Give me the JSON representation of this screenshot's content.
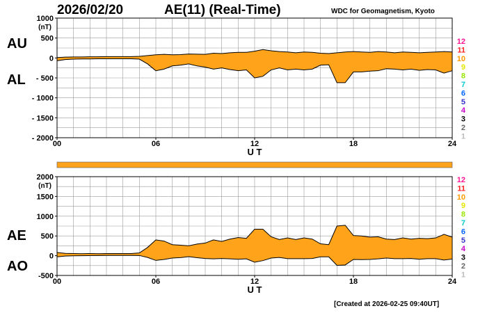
{
  "header": {
    "date": "2026/02/20",
    "title": "AE(11) (Real-Time)",
    "source": "WDC for Geomagnetism, Kyoto"
  },
  "footer": {
    "created": "[Created at 2026-02-25 09:40UT]"
  },
  "colors": {
    "fill": "#ffa31a",
    "line": "#000000",
    "grid": "#9a9a9a",
    "bar": "#ffa31a"
  },
  "legend": {
    "labels": [
      "12",
      "11",
      "10",
      "9",
      "8",
      "7",
      "6",
      "5",
      "4",
      "3",
      "2",
      "1"
    ],
    "colors": [
      "#ff1493",
      "#ff2020",
      "#ff9900",
      "#e6e600",
      "#99e600",
      "#00cccc",
      "#0066ff",
      "#3333cc",
      "#cc00cc",
      "#000000",
      "#666666",
      "#bbbbbb"
    ]
  },
  "chart_data": [
    {
      "type": "area",
      "side_labels": {
        "upper": "AU",
        "lower": "AL"
      },
      "unit": "(nT)",
      "xlabel": "U T",
      "xlim": [
        0,
        24
      ],
      "ylim": [
        -2000,
        1000
      ],
      "x_ticks": [
        "00",
        "06",
        "12",
        "18",
        "24"
      ],
      "y_ticks": [
        "1000",
        "500",
        "0",
        "- 500",
        "- 1000",
        "- 1500",
        "- 2000"
      ],
      "x": [
        0,
        0.5,
        1,
        1.5,
        2,
        2.5,
        3,
        3.5,
        4,
        4.5,
        5,
        5.5,
        6,
        6.5,
        7,
        7.5,
        8,
        8.5,
        9,
        9.5,
        10,
        10.5,
        11,
        11.5,
        12,
        12.5,
        13,
        13.5,
        14,
        14.5,
        15,
        15.5,
        16,
        16.5,
        17,
        17.5,
        18,
        18.5,
        19,
        19.5,
        20,
        20.5,
        21,
        21.5,
        22,
        22.5,
        23,
        23.5,
        24
      ],
      "series": [
        {
          "name": "AU",
          "values": [
            10,
            20,
            25,
            25,
            30,
            30,
            35,
            35,
            35,
            35,
            40,
            60,
            80,
            90,
            80,
            85,
            100,
            95,
            90,
            120,
            110,
            130,
            140,
            140,
            170,
            210,
            180,
            160,
            150,
            130,
            150,
            140,
            120,
            110,
            130,
            150,
            160,
            150,
            140,
            160,
            150,
            130,
            150,
            140,
            130,
            140,
            150,
            160,
            150
          ]
        },
        {
          "name": "AL",
          "values": [
            -70,
            -40,
            -30,
            -25,
            -25,
            -20,
            -20,
            -20,
            -20,
            -20,
            -30,
            -150,
            -320,
            -280,
            -200,
            -180,
            -150,
            -200,
            -230,
            -280,
            -250,
            -290,
            -320,
            -300,
            -500,
            -460,
            -300,
            -250,
            -300,
            -280,
            -300,
            -280,
            -180,
            -170,
            -620,
            -620,
            -350,
            -350,
            -330,
            -320,
            -270,
            -280,
            -300,
            -280,
            -310,
            -290,
            -300,
            -380,
            -320
          ]
        }
      ]
    },
    {
      "type": "area",
      "side_labels": {
        "upper": "AE",
        "lower": "AO"
      },
      "unit": "(nT)",
      "xlabel": "U T",
      "xlim": [
        0,
        24
      ],
      "ylim": [
        -500,
        2000
      ],
      "x_ticks": [
        "00",
        "06",
        "12",
        "18",
        "24"
      ],
      "y_ticks": [
        "2000",
        "1500",
        "1000",
        "500",
        "0",
        "-500"
      ],
      "x": [
        0,
        0.5,
        1,
        1.5,
        2,
        2.5,
        3,
        3.5,
        4,
        4.5,
        5,
        5.5,
        6,
        6.5,
        7,
        7.5,
        8,
        8.5,
        9,
        9.5,
        10,
        10.5,
        11,
        11.5,
        12,
        12.5,
        13,
        13.5,
        14,
        14.5,
        15,
        15.5,
        16,
        16.5,
        17,
        17.5,
        18,
        18.5,
        19,
        19.5,
        20,
        20.5,
        21,
        21.5,
        22,
        22.5,
        23,
        23.5,
        24
      ],
      "series": [
        {
          "name": "AE",
          "values": [
            80,
            60,
            55,
            50,
            55,
            50,
            55,
            55,
            55,
            55,
            70,
            210,
            400,
            370,
            280,
            265,
            250,
            295,
            320,
            400,
            360,
            420,
            460,
            440,
            670,
            670,
            480,
            410,
            450,
            410,
            450,
            420,
            300,
            280,
            750,
            770,
            510,
            500,
            470,
            480,
            420,
            410,
            450,
            420,
            440,
            430,
            450,
            540,
            470
          ]
        },
        {
          "name": "AO",
          "values": [
            -30,
            -10,
            -3,
            0,
            3,
            5,
            8,
            8,
            8,
            8,
            5,
            -45,
            -120,
            -95,
            -60,
            -48,
            -25,
            -52,
            -70,
            -80,
            -70,
            -80,
            -90,
            -80,
            -165,
            -125,
            -60,
            -45,
            -75,
            -75,
            -75,
            -70,
            -30,
            -30,
            -245,
            -235,
            -95,
            -100,
            -95,
            -80,
            -60,
            -75,
            -75,
            -70,
            -90,
            -75,
            -75,
            -110,
            -85
          ]
        }
      ]
    }
  ]
}
